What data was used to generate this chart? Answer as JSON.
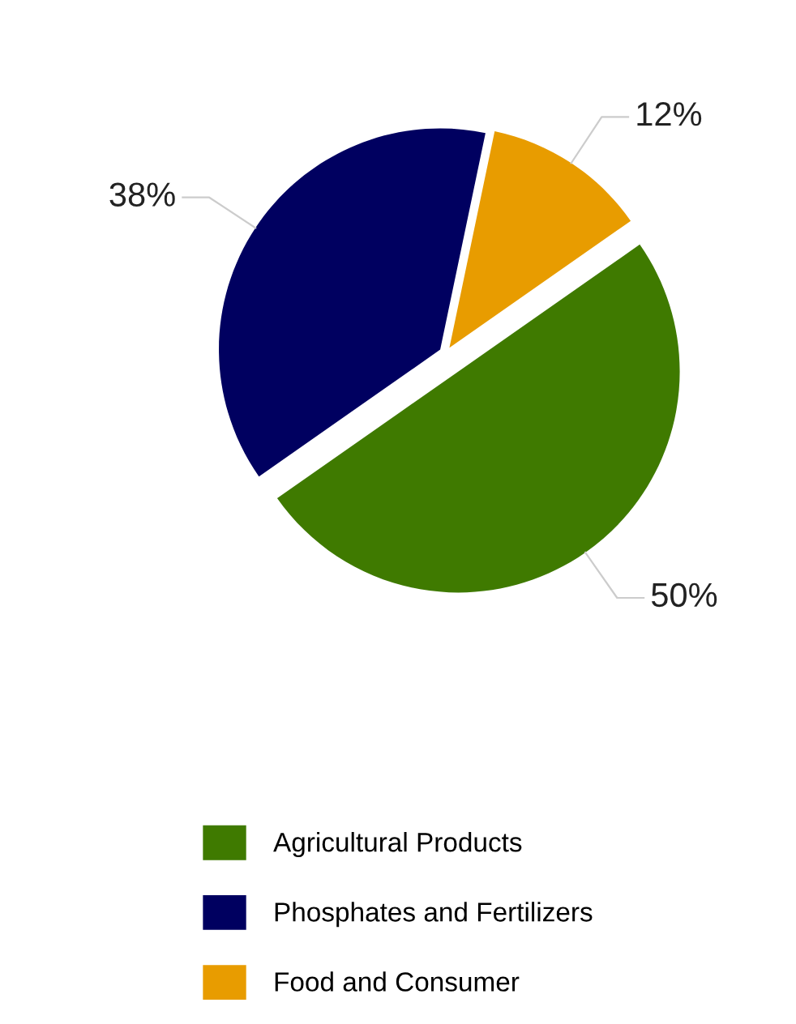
{
  "chart_data": {
    "type": "pie",
    "categories": [
      "Agricultural Products",
      "Phosphates and Fertilizers",
      "Food and Consumer"
    ],
    "values": [
      50,
      38,
      12
    ],
    "value_labels": [
      "50%",
      "38%",
      "12%"
    ],
    "colors": [
      "#3f7a00",
      "#000060",
      "#e89c00"
    ],
    "legend": "bottom"
  }
}
